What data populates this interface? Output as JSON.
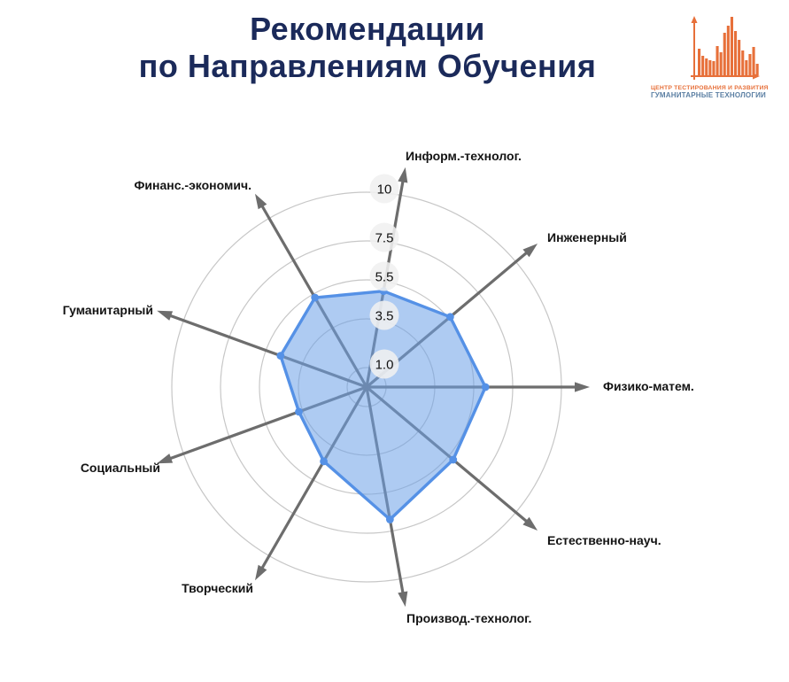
{
  "header": {
    "title_line1": "Рекомендации",
    "title_line2": "по Направлениям Обучения"
  },
  "logo": {
    "line1": "ЦЕНТР ТЕСТИРОВАНИЯ И РАЗВИТИЯ",
    "line2": "ГУМАНИТАРНЫЕ ТЕХНОЛОГИИ"
  },
  "colors": {
    "title_navy": "#1b2a5a",
    "logo_orange": "#e7703a",
    "logo_blue": "#5b7fa3",
    "axis_arrow_gray": "#6d6d6d",
    "grid_ring_gray": "#c7c7c7",
    "series_stroke_blue": "#5591e6",
    "series_fill_blue": "rgba(108,160,232,0.55)",
    "tick_badge_gray": "rgba(240,240,240,0.88)"
  },
  "chart_data": {
    "type": "radar",
    "title": "Рекомендации по Направлениям Обучения",
    "categories": [
      "Информ.-технолог.",
      "Инженерный",
      "Физико-матем.",
      "Естественно-науч.",
      "Производ.-технолог.",
      "Творческий",
      "Социальный",
      "Гуманитарный",
      "Финанс.-экономич."
    ],
    "values": [
      5.0,
      5.6,
      6.1,
      5.8,
      6.9,
      4.4,
      3.7,
      4.7,
      5.3
    ],
    "angles_deg": [
      80,
      40,
      0,
      320,
      280,
      240,
      200,
      160,
      120
    ],
    "radial_ticks": {
      "values": [
        1.0,
        3.5,
        5.5,
        7.5,
        10
      ],
      "labels": [
        "1.0",
        "3.5",
        "5.5",
        "7.5",
        "10"
      ]
    },
    "rlim": [
      0,
      10
    ],
    "grid": "circular-rings",
    "axes_style": "arrows-from-center",
    "legend": "none"
  }
}
